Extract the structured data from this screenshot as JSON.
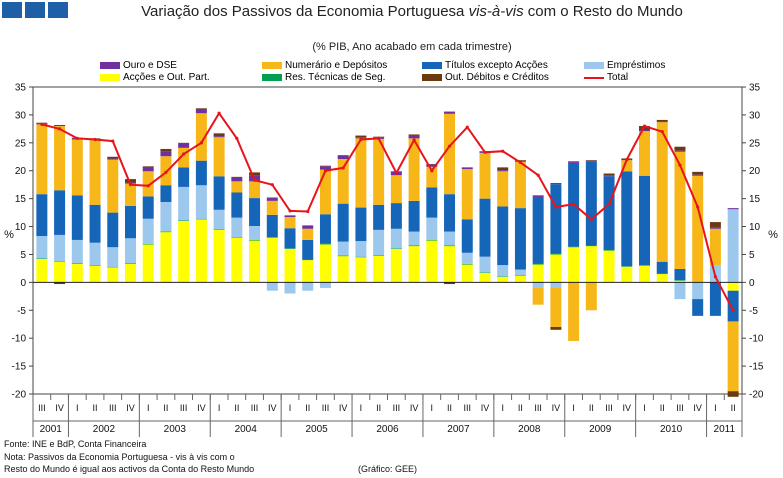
{
  "logo": {
    "icon": "square-blocks-icon"
  },
  "footer": {
    "source": "Fonte: INE e BdP, Conta Financeira",
    "note_line1": "Nota: Passivos da Economia Portuguesa - vis à vis com o",
    "note_line2": "Resto do Mundo é igual aos activos da Conta do Resto Mundo",
    "credit": "(Gráfico: GEE)"
  },
  "chart_data": {
    "type": "bar",
    "stacked": true,
    "title_prefix": "Variação dos Passivos da Economia Portuguesa ",
    "title_em": "vis-à-vis",
    "title_suffix": " com o Resto do Mundo",
    "subtitle": "(% PIB, Ano acabado em cada trimestre)",
    "ylabel_left": "%",
    "ylabel_right": "%",
    "ylim": [
      -20,
      35
    ],
    "yticks": [
      -20,
      -15,
      -10,
      -5,
      0,
      5,
      10,
      15,
      20,
      25,
      30,
      35
    ],
    "grid": false,
    "categories": [
      "III",
      "IV",
      "I",
      "II",
      "III",
      "IV",
      "I",
      "II",
      "III",
      "IV",
      "I",
      "II",
      "III",
      "IV",
      "I",
      "II",
      "III",
      "IV",
      "I",
      "II",
      "III",
      "IV",
      "I",
      "II",
      "III",
      "IV",
      "I",
      "II",
      "III",
      "IV",
      "I",
      "II",
      "III",
      "IV",
      "I",
      "II",
      "III",
      "IV",
      "I",
      "II"
    ],
    "years": [
      {
        "label": "2001",
        "start": 0,
        "count": 2
      },
      {
        "label": "2002",
        "start": 2,
        "count": 4
      },
      {
        "label": "2003",
        "start": 6,
        "count": 4
      },
      {
        "label": "2004",
        "start": 10,
        "count": 4
      },
      {
        "label": "2005",
        "start": 14,
        "count": 4
      },
      {
        "label": "2006",
        "start": 18,
        "count": 4
      },
      {
        "label": "2007",
        "start": 22,
        "count": 4
      },
      {
        "label": "2008",
        "start": 26,
        "count": 4
      },
      {
        "label": "2009",
        "start": 30,
        "count": 4
      },
      {
        "label": "2010",
        "start": 34,
        "count": 4
      },
      {
        "label": "2011",
        "start": 38,
        "count": 2
      }
    ],
    "series": [
      {
        "name": "Acções e Out. Part.",
        "color": "#ffff00",
        "values": [
          4.2,
          3.7,
          3.3,
          3.0,
          2.7,
          3.3,
          6.8,
          9.0,
          11.0,
          11.3,
          9.4,
          8.0,
          7.5,
          8.0,
          6.0,
          4.0,
          6.8,
          4.7,
          4.5,
          4.8,
          6.0,
          6.5,
          7.5,
          6.5,
          3.2,
          1.7,
          1.0,
          1.2,
          3.2,
          5.0,
          6.3,
          6.5,
          5.7,
          2.8,
          3.0,
          1.5,
          0.3,
          0.0,
          0.0,
          -1.5
        ]
      },
      {
        "name": "Res. Técnicas de Seg.",
        "color": "#00a050",
        "values": [
          0.1,
          0.1,
          0.1,
          0.1,
          0.1,
          0.1,
          0.1,
          0.1,
          0.1,
          0.1,
          0.1,
          0.1,
          0.1,
          0.1,
          0.1,
          0.1,
          0.1,
          0.1,
          0.1,
          0.1,
          0.1,
          0.1,
          0.1,
          0.1,
          0.1,
          0.1,
          0.1,
          0.1,
          0.1,
          0.1,
          0.1,
          0.1,
          0.1,
          0.1,
          0.1,
          0.1,
          0.1,
          0.1,
          0.1,
          0.1
        ]
      },
      {
        "name": "Empréstimos",
        "color": "#9dc8ee",
        "values": [
          4.0,
          4.7,
          4.2,
          4.0,
          3.5,
          4.5,
          4.5,
          5.3,
          6.0,
          6.0,
          3.5,
          3.5,
          2.5,
          -1.5,
          -2.0,
          -1.5,
          -1.0,
          2.5,
          2.8,
          4.5,
          3.5,
          2.5,
          4.0,
          2.5,
          2.0,
          2.8,
          2.0,
          1.0,
          -1.0,
          -1.0,
          0.0,
          0.0,
          0.0,
          0.0,
          0.0,
          0.0,
          -3.0,
          -3.0,
          3.0,
          13.0
        ]
      },
      {
        "name": "Títulos excepto Acções",
        "color": "#1565b8",
        "values": [
          7.5,
          8.0,
          8.0,
          6.8,
          6.2,
          5.8,
          4.0,
          3.0,
          3.5,
          4.4,
          6.0,
          4.5,
          5.0,
          4.0,
          3.6,
          3.5,
          5.3,
          6.8,
          6.0,
          4.5,
          4.6,
          5.5,
          5.4,
          6.7,
          6.0,
          10.4,
          10.5,
          11.0,
          12.0,
          12.5,
          15.0,
          15.0,
          13.2,
          17.0,
          16.0,
          2.1,
          2.0,
          -3.0,
          -6.0,
          -5.5
        ]
      },
      {
        "name": "Numerário e Depósitos",
        "color": "#f8b719",
        "values": [
          12.5,
          11.5,
          10.0,
          11.6,
          9.5,
          4.0,
          4.5,
          5.2,
          3.5,
          8.5,
          7.0,
          2.0,
          3.0,
          2.5,
          2.0,
          2.0,
          8.0,
          8.0,
          12.4,
          11.8,
          5.0,
          11.2,
          3.7,
          14.4,
          9.0,
          8.2,
          6.3,
          8.3,
          -3.0,
          -7.0,
          -10.5,
          -5.0,
          0.0,
          2.0,
          8.0,
          25.0,
          21.0,
          19.0,
          6.5,
          -12.5
        ]
      },
      {
        "name": "Ouro e DSE",
        "color": "#7030a0",
        "values": [
          0.2,
          0.2,
          0.2,
          0.2,
          0.2,
          0.2,
          0.8,
          0.8,
          0.8,
          0.8,
          0.2,
          0.7,
          1.0,
          0.5,
          0.2,
          0.5,
          0.6,
          0.6,
          0.2,
          0.3,
          0.6,
          0.6,
          0.4,
          0.4,
          0.2,
          0.2,
          0.2,
          0.2,
          0.2,
          0.2,
          0.2,
          0.2,
          0.2,
          0.2,
          0.2,
          0.2,
          0.2,
          0.2,
          0.2,
          0.2
        ]
      },
      {
        "name": "Out. Débitos e Créditos",
        "color": "#6b3a10",
        "values": [
          0.1,
          -0.3,
          0.1,
          0.1,
          0.3,
          0.6,
          0.1,
          0.5,
          0.1,
          0.1,
          0.5,
          0.1,
          0.6,
          0.1,
          0.1,
          0.1,
          0.1,
          0.1,
          0.3,
          0.1,
          0.1,
          0.1,
          0.1,
          -0.3,
          0.1,
          0.1,
          0.5,
          0.1,
          0.1,
          -0.5,
          0.1,
          0.1,
          0.3,
          0.1,
          0.7,
          0.2,
          0.7,
          0.5,
          1.0,
          -1.0
        ]
      }
    ],
    "total": {
      "name": "Total",
      "color": "#e8141c",
      "values": [
        28.3,
        27.5,
        25.8,
        25.6,
        25.3,
        17.5,
        17.3,
        19.7,
        23.0,
        25.0,
        30.3,
        25.8,
        18.3,
        17.5,
        12.8,
        12.7,
        20.0,
        20.5,
        25.6,
        25.8,
        19.6,
        25.5,
        20.0,
        24.4,
        27.8,
        23.3,
        23.5,
        21.5,
        19.2,
        13.5,
        14.0,
        11.3,
        14.0,
        22.0,
        28.0,
        27.0,
        21.0,
        13.5,
        1.0,
        -5.0
      ]
    }
  }
}
